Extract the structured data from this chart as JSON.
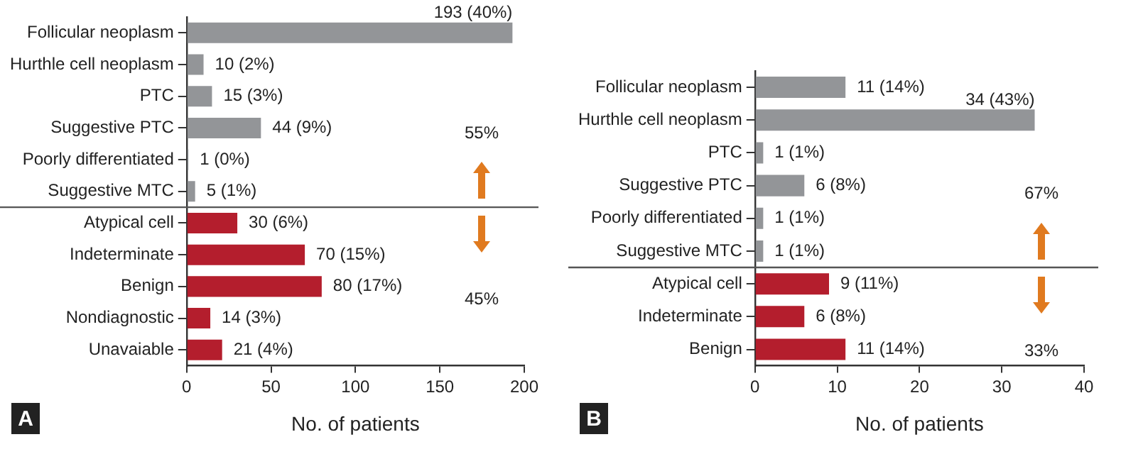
{
  "chart_data": [
    {
      "type": "bar",
      "orientation": "horizontal",
      "title": "A",
      "xlabel": "No. of patients",
      "categories": [
        "Follicular neoplasm",
        "Hurthle cell neoplasm",
        "PTC",
        "Suggestive PTC",
        "Poorly differentiated",
        "Suggestive MTC",
        "Atypical cell",
        "Indeterminate",
        "Benign",
        "Nondiagnostic",
        "Unavaiable"
      ],
      "values": [
        193,
        10,
        15,
        44,
        1,
        5,
        30,
        70,
        80,
        14,
        21
      ],
      "colors": [
        "#939598",
        "#939598",
        "#939598",
        "#939598",
        "#939598",
        "#939598",
        "#b41e2d",
        "#b41e2d",
        "#b41e2d",
        "#b41e2d",
        "#b41e2d"
      ],
      "value_labels": [
        "193 (40%)",
        "10 (2%)",
        "15 (3%)",
        "44 (9%)",
        "1 (0%)",
        "5 (1%)",
        "30 (6%)",
        "70 (15%)",
        "80 (17%)",
        "14 (3%)",
        "21 (4%)"
      ],
      "xlim": [
        0,
        200
      ],
      "xticks": [
        0,
        50,
        100,
        150,
        200
      ],
      "grid": false,
      "legend": false,
      "annotations": [
        "55%",
        "45%"
      ]
    },
    {
      "type": "bar",
      "orientation": "horizontal",
      "title": "B",
      "xlabel": "No. of patients",
      "categories": [
        "Follicular neoplasm",
        "Hurthle cell neoplasm",
        "PTC",
        "Suggestive PTC",
        "Poorly differentiated",
        "Suggestive MTC",
        "Atypical cell",
        "Indeterminate",
        "Benign"
      ],
      "values": [
        11,
        34,
        1,
        6,
        1,
        1,
        9,
        6,
        11
      ],
      "colors": [
        "#939598",
        "#939598",
        "#939598",
        "#939598",
        "#939598",
        "#939598",
        "#b41e2d",
        "#b41e2d",
        "#b41e2d"
      ],
      "value_labels": [
        "11 (14%)",
        "34 (43%)",
        "1 (1%)",
        "6 (8%)",
        "1 (1%)",
        "1 (1%)",
        "9 (11%)",
        "6 (8%)",
        "11 (14%)"
      ],
      "xlim": [
        0,
        40
      ],
      "xticks": [
        0,
        10,
        20,
        30,
        40
      ],
      "grid": false,
      "legend": false,
      "annotations": [
        "67%",
        "33%"
      ]
    }
  ]
}
